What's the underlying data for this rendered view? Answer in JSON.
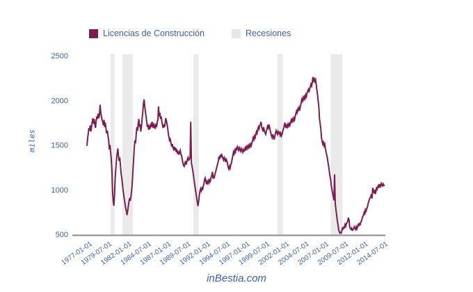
{
  "legend": {
    "series_label": "Licencias de Construcción",
    "recessions_label": "Recesiones"
  },
  "footer": {
    "brand": "inBestia.com"
  },
  "colors": {
    "line": "#7b1d4e",
    "recession_band": "#eaeaea",
    "text_blue": "#3a5fa8",
    "axis_line": "#8a8a8a"
  },
  "chart_data": {
    "type": "line",
    "title": "",
    "ylabel": "miles",
    "ylim": [
      500,
      2500
    ],
    "yticks": [
      500,
      1000,
      1500,
      2000,
      2500
    ],
    "grid": false,
    "legend_position": "top",
    "xtick_labels": [
      "1977-01-01",
      "1979-07-01",
      "1982-01-01",
      "1984-07-01",
      "1987-01-01",
      "1989-07-01",
      "1992-01-01",
      "1994-07-01",
      "1997-01-01",
      "1999-07-01",
      "2002-01-01",
      "2004-07-01",
      "2007-01-01",
      "2009-07-01",
      "2012-01-01",
      "2014-07-01"
    ],
    "recessions": [
      {
        "from": "1980-01",
        "to": "1980-07"
      },
      {
        "from": "1981-07",
        "to": "1982-11"
      },
      {
        "from": "1990-07",
        "to": "1991-03"
      },
      {
        "from": "2001-03",
        "to": "2001-11"
      },
      {
        "from": "2007-12",
        "to": "2009-06"
      }
    ],
    "series": [
      {
        "name": "Licencias de Construcción",
        "start": "1977-01",
        "frequency": "monthly",
        "values": [
          1490,
          1570,
          1630,
          1690,
          1660,
          1720,
          1650,
          1700,
          1760,
          1800,
          1740,
          1790,
          1730,
          1690,
          1770,
          1820,
          1790,
          1850,
          1800,
          1830,
          1950,
          1870,
          1820,
          1780,
          1760,
          1720,
          1780,
          1700,
          1750,
          1680,
          1630,
          1660,
          1600,
          1560,
          1450,
          1500,
          1420,
          1350,
          1220,
          980,
          870,
          820,
          950,
          1130,
          1240,
          1340,
          1400,
          1460,
          1380,
          1320,
          1360,
          1270,
          1180,
          1130,
          1060,
          1000,
          940,
          890,
          840,
          790,
          760,
          715,
          765,
          815,
          865,
          905,
          875,
          925,
          985,
          1080,
          1210,
          1340,
          1460,
          1550,
          1520,
          1620,
          1700,
          1660,
          1740,
          1790,
          1700,
          1730,
          1650,
          1710,
          1790,
          1870,
          1960,
          2010,
          1930,
          1870,
          1820,
          1760,
          1700,
          1730,
          1670,
          1700,
          1680,
          1740,
          1700,
          1760,
          1720,
          1690,
          1730,
          1710,
          1680,
          1740,
          1700,
          1760,
          1780,
          1930,
          1820,
          1860,
          1790,
          1820,
          1760,
          1720,
          1690,
          1730,
          1700,
          1740,
          1800,
          1770,
          1730,
          1680,
          1620,
          1580,
          1540,
          1560,
          1520,
          1480,
          1510,
          1470,
          1450,
          1480,
          1440,
          1470,
          1420,
          1450,
          1400,
          1430,
          1390,
          1420,
          1440,
          1400,
          1380,
          1340,
          1300,
          1270,
          1260,
          1290,
          1320,
          1280,
          1310,
          1340,
          1360,
          1330,
          1340,
          1360,
          1760,
          1300,
          1260,
          1220,
          1170,
          1110,
          1060,
          1010,
          960,
          910,
          860,
          815,
          860,
          930,
          980,
          1010,
          985,
          1015,
          995,
          1040,
          1060,
          1110,
          1130,
          1100,
          1060,
          1090,
          1070,
          1100,
          1080,
          1120,
          1100,
          1140,
          1160,
          1200,
          1120,
          1150,
          1140,
          1180,
          1200,
          1230,
          1260,
          1290,
          1320,
          1370,
          1340,
          1390,
          1360,
          1400,
          1370,
          1350,
          1330,
          1360,
          1340,
          1310,
          1340,
          1320,
          1290,
          1250,
          1230,
          1260,
          1240,
          1280,
          1300,
          1340,
          1380,
          1420,
          1400,
          1440,
          1420,
          1460,
          1450,
          1480,
          1460,
          1440,
          1470,
          1450,
          1430,
          1460,
          1440,
          1420,
          1450,
          1430,
          1440,
          1470,
          1450,
          1480,
          1460,
          1490,
          1470,
          1500,
          1480,
          1510,
          1490,
          1520,
          1540,
          1580,
          1560,
          1600,
          1580,
          1620,
          1650,
          1630,
          1670,
          1700,
          1680,
          1720,
          1730,
          1760,
          1700,
          1680,
          1650,
          1700,
          1660,
          1640,
          1620,
          1650,
          1680,
          1710,
          1690,
          1730,
          1700,
          1660,
          1630,
          1600,
          1580,
          1620,
          1590,
          1560,
          1600,
          1630,
          1660,
          1640,
          1620,
          1650,
          1630,
          1640,
          1610,
          1630,
          1600,
          1620,
          1650,
          1680,
          1700,
          1750,
          1720,
          1690,
          1720,
          1700,
          1730,
          1710,
          1740,
          1720,
          1750,
          1780,
          1760,
          1790,
          1770,
          1800,
          1780,
          1820,
          1850,
          1880,
          1860,
          1900,
          1880,
          1920,
          1900,
          1930,
          1970,
          2010,
          1990,
          2030,
          2010,
          2040,
          2020,
          2060,
          2040,
          2080,
          2100,
          2120,
          2090,
          2130,
          2150,
          2180,
          2160,
          2200,
          2260,
          2220,
          2240,
          2210,
          2230,
          2180,
          2120,
          2060,
          1990,
          1930,
          1790,
          1740,
          1680,
          1580,
          1540,
          1510,
          1530,
          1490,
          1510,
          1460,
          1420,
          1390,
          1350,
          1300,
          1260,
          1200,
          1150,
          1110,
          1040,
          1000,
          960,
          920,
          880,
          1170,
          840,
          780,
          720,
          660,
          610,
          560,
          530,
          515,
          520,
          513,
          540,
          570,
          560,
          580,
          575,
          610,
          590,
          620,
          630,
          650,
          685,
          660,
          580,
          565,
          555,
          570,
          545,
          550,
          560,
          585,
          570,
          555,
          585,
          560,
          580,
          610,
          600,
          620,
          610,
          640,
          650,
          680,
          700,
          715,
          745,
          730,
          775,
          760,
          790,
          810,
          840,
          870,
          890,
          910,
          920,
          950,
          900,
          1020,
          990,
          960,
          1000,
          950,
          980,
          1030,
          1010,
          1040,
          1050,
          1020,
          1060,
          1040,
          1070,
          1050,
          1040,
          1065,
          1050,
          1040
        ]
      }
    ]
  }
}
